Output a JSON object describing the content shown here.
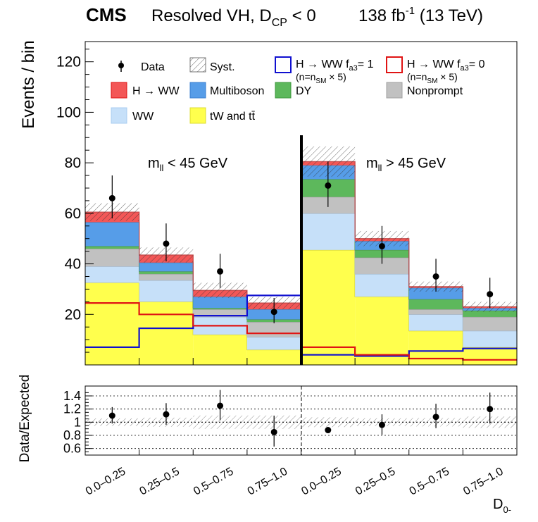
{
  "header": {
    "experiment": "CMS",
    "title_main": "Resolved VH, D",
    "title_sub": "CP",
    "title_cut": " < 0",
    "lumi_main": "138 fb",
    "lumi_sup": "-1",
    "lumi_energy": " (13 TeV)"
  },
  "chart_data": {
    "type": "bar",
    "subtype": "stacked-histogram-with-ratio",
    "ylabel": "Events / bin",
    "ylim": [
      0,
      128
    ],
    "y_ticks": [
      20,
      40,
      60,
      80,
      100,
      120
    ],
    "ratio_ylabel": "Data/Expected",
    "ratio_ylim": [
      0.5,
      1.55
    ],
    "ratio_ticks": [
      0.6,
      0.8,
      1,
      1.2,
      1.4
    ],
    "xlabel_main": "D",
    "xlabel_sub": "0-",
    "categories": [
      "0.0–0.25",
      "0.25–0.5",
      "0.5–0.75",
      "0.75–1.0",
      "0.0–0.25",
      "0.25–0.5",
      "0.5–0.75",
      "0.75–1.0"
    ],
    "region_labels": [
      {
        "main": "m",
        "sub": "ll",
        "rest": " < 45 GeV"
      },
      {
        "main": "m",
        "sub": "ll",
        "rest": " > 45 GeV"
      }
    ],
    "stack_order": [
      "tW and tt̄",
      "WW",
      "Nonprompt",
      "DY",
      "Multiboson",
      "H → WW"
    ],
    "series": [
      {
        "name": "tW and tt̄",
        "legend": "tW and tt̄",
        "color": "#ffff4d",
        "values": [
          32.5,
          25,
          12,
          6,
          45.5,
          27,
          13.5,
          7
        ]
      },
      {
        "name": "WW",
        "legend": "WW",
        "color": "#c6e0f9",
        "values": [
          6.5,
          8.5,
          7,
          5,
          14.5,
          9,
          6.5,
          6.5
        ]
      },
      {
        "name": "Nonprompt",
        "legend": "Nonprompt",
        "color": "#c1c1c1",
        "values": [
          7,
          2.5,
          3,
          6,
          6.5,
          6.5,
          2,
          5.5
        ]
      },
      {
        "name": "DY",
        "legend": "DY",
        "color": "#5db85c",
        "values": [
          1,
          1,
          0.5,
          1,
          7,
          3,
          4,
          2.5
        ]
      },
      {
        "name": "Multiboson",
        "legend": "Multiboson",
        "color": "#569de8",
        "values": [
          9.5,
          3.5,
          4.5,
          4,
          5.5,
          3.5,
          4.5,
          1
        ]
      },
      {
        "name": "H → WW",
        "legend": "H → WW",
        "color": "#f35757",
        "values": [
          4,
          3,
          2.5,
          2.5,
          1.5,
          1,
          0.5,
          0.5
        ]
      }
    ],
    "syst_halfwidth": [
      3.5,
      3,
      3,
      2.5,
      6,
      3,
      2,
      2
    ],
    "signal_lines": [
      {
        "name": "H → WW fa3 = 1 (n = nSM × 5)",
        "color": "#1010d0",
        "values": [
          7,
          14.5,
          19.5,
          27.5,
          4,
          3.5,
          5.5,
          6.5
        ]
      },
      {
        "name": "H → WW fa3 = 0 (n = nSM × 5)",
        "color": "#e01414",
        "values": [
          24.5,
          20,
          15.5,
          12.5,
          7,
          4,
          2.5,
          2
        ]
      }
    ],
    "data": {
      "name": "Data",
      "values": [
        66,
        48,
        37,
        21,
        71,
        47,
        35,
        28
      ],
      "err_up": [
        9,
        8,
        7,
        5.5,
        9.5,
        8,
        7,
        6.5
      ],
      "err_down": [
        8,
        7,
        6.5,
        4.5,
        8.5,
        7,
        6,
        5.5
      ]
    },
    "ratio": {
      "values": [
        1.1,
        1.12,
        1.25,
        0.85,
        0.88,
        0.96,
        1.08,
        1.2
      ],
      "err_up": [
        0.13,
        0.17,
        0.24,
        0.25,
        0.0,
        0.16,
        0.2,
        0.25
      ],
      "err_down": [
        0.12,
        0.16,
        0.22,
        0.22,
        0.0,
        0.15,
        0.17,
        0.22
      ]
    }
  },
  "legend": {
    "data": "Data",
    "syst": "Syst.",
    "sig1_line1_a": "H → WW f",
    "sig1_line1_sub": "a3",
    "sig1_line1_b": "= 1",
    "sig1_line2_a": "(n=n",
    "sig1_line2_sub": "SM",
    "sig1_line2_b": " × 5)",
    "sig0_line1_a": "H → WW f",
    "sig0_line1_sub": "a3",
    "sig0_line1_b": "= 0",
    "sig0_line2_a": "(n=n",
    "sig0_line2_sub": "SM",
    "sig0_line2_b": " × 5)",
    "hww": "H → WW",
    "multiboson": "Multiboson",
    "dy": "DY",
    "nonprompt": "Nonprompt",
    "ww": "WW",
    "tw_a": "tW and t",
    "tw_b": "t̄"
  }
}
